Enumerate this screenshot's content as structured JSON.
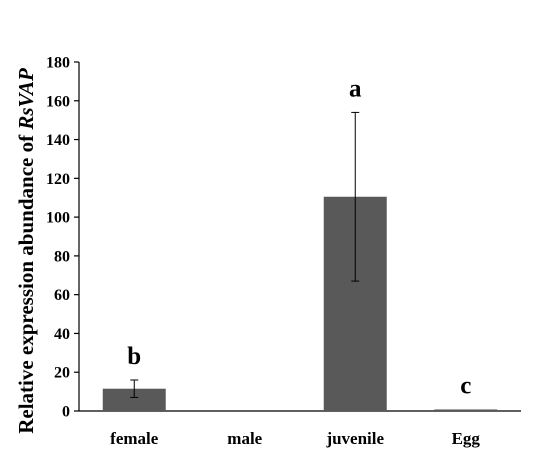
{
  "chart_data": {
    "type": "bar",
    "categories": [
      "female",
      "male",
      "juvenile",
      "Egg"
    ],
    "values": [
      11.5,
      0,
      110.5,
      0.8
    ],
    "error": [
      4.5,
      0,
      43.5,
      0
    ],
    "significance": [
      "b",
      "",
      "a",
      "c"
    ],
    "ylabel_prefix": "Relative expression abundance of ",
    "ylabel_gene": "RsVAP",
    "ylim": [
      0,
      180
    ],
    "yticks": [
      0,
      20,
      40,
      60,
      80,
      100,
      120,
      140,
      160,
      180
    ],
    "bar_color": "#595959",
    "grid": false
  }
}
